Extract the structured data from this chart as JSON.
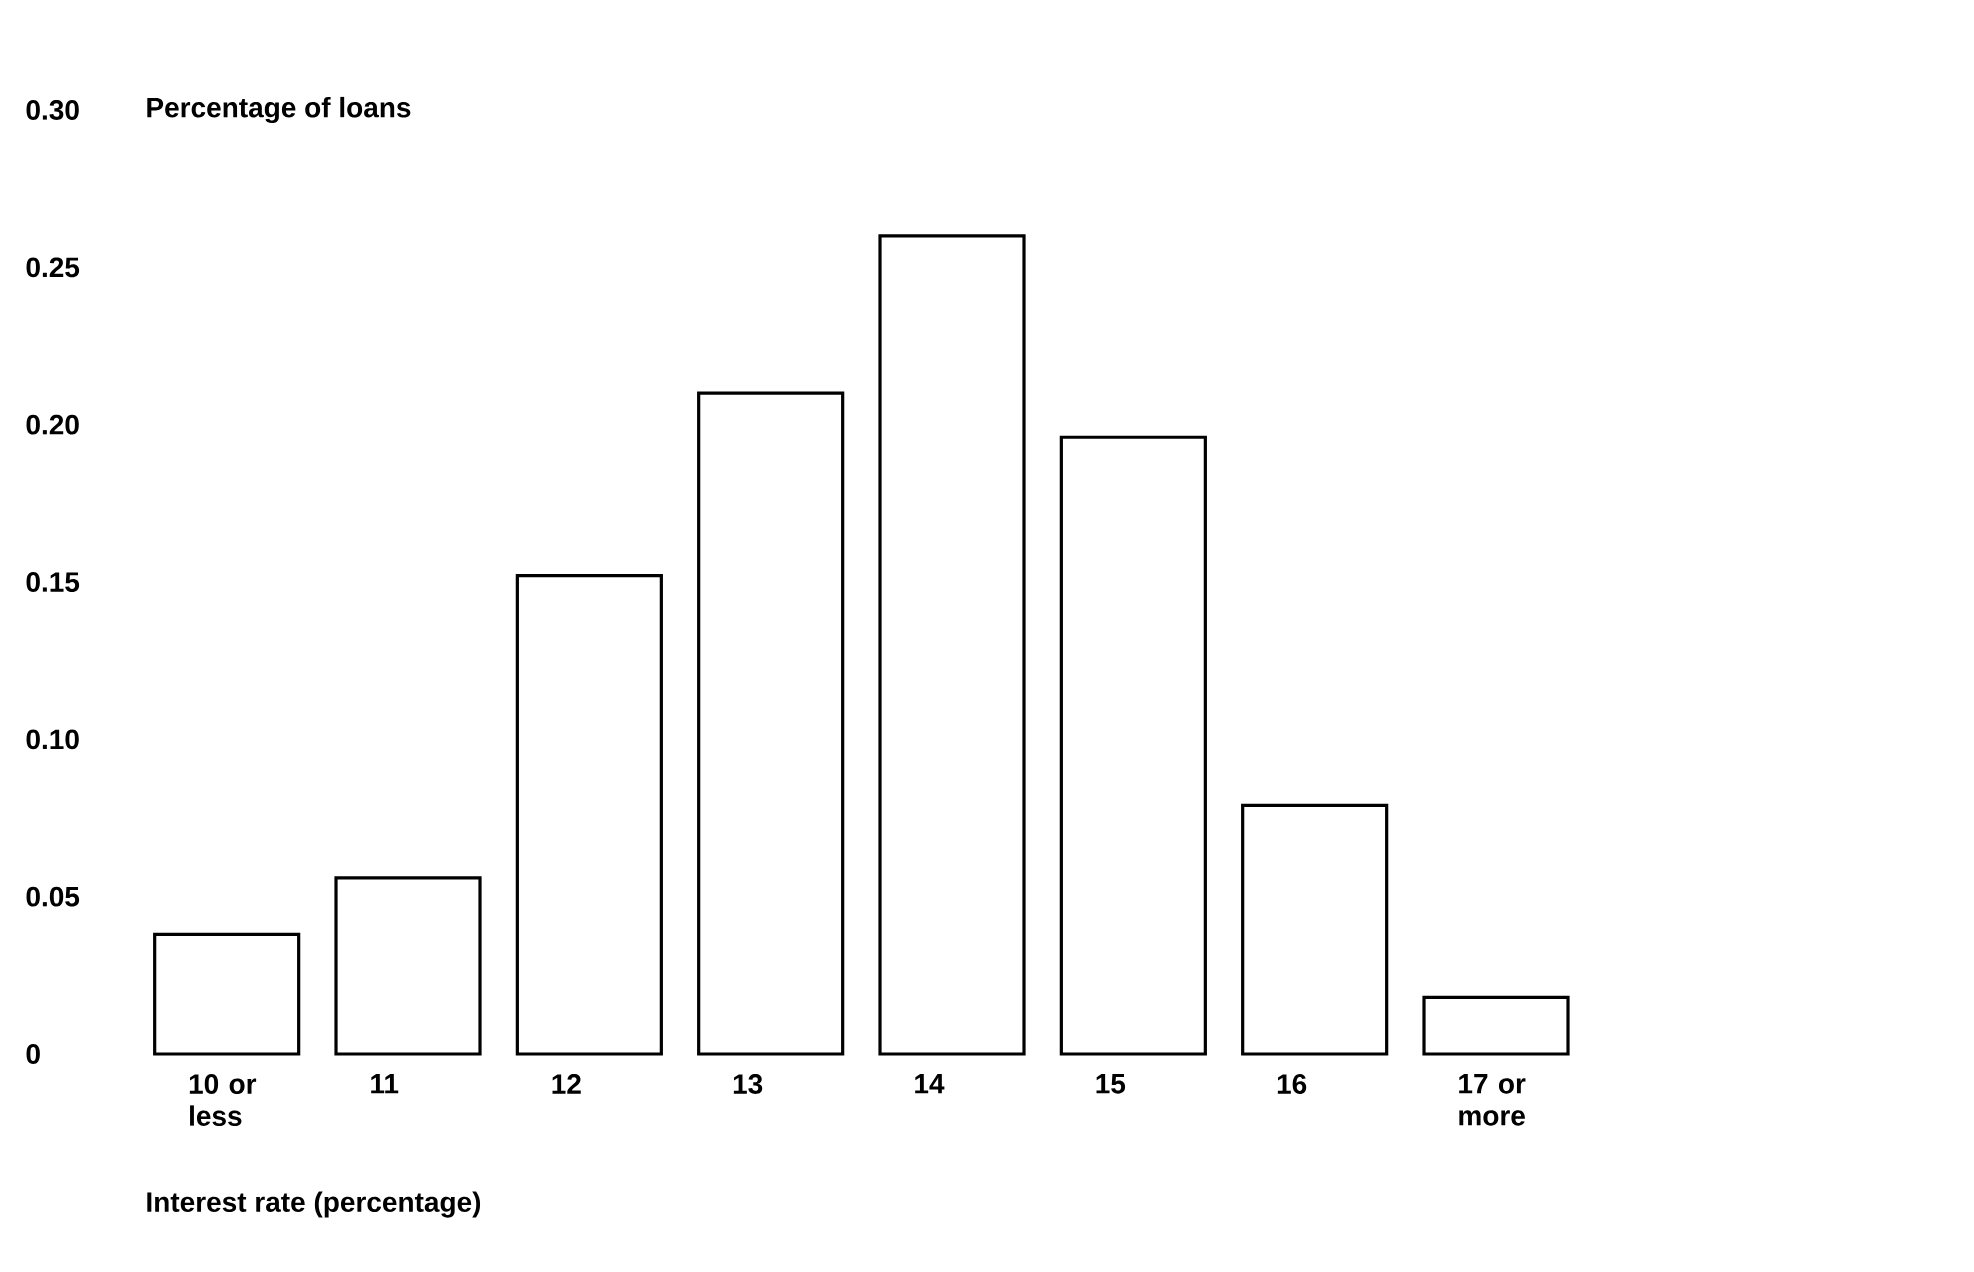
{
  "chart_data": {
    "type": "bar",
    "xlabel": "Interest rate (percentage)",
    "ylabel": "Percentage of loans",
    "categories": [
      "10 or less",
      "11",
      "12",
      "13",
      "14",
      "15",
      "16",
      "17 or more"
    ],
    "values": [
      0.038,
      0.056,
      0.152,
      0.21,
      0.26,
      0.196,
      0.079,
      0.018
    ],
    "color": "#ffffff",
    "ylim": [
      0,
      0.3
    ],
    "yticks": [
      0,
      0.05,
      {
        "value": 0.1,
        "label": "0.10"
      },
      0.15,
      {
        "value": 0.2,
        "label": "0.20"
      },
      0.25,
      {
        "value": 0.3,
        "label": "0.30"
      }
    ],
    "grid": false
  }
}
